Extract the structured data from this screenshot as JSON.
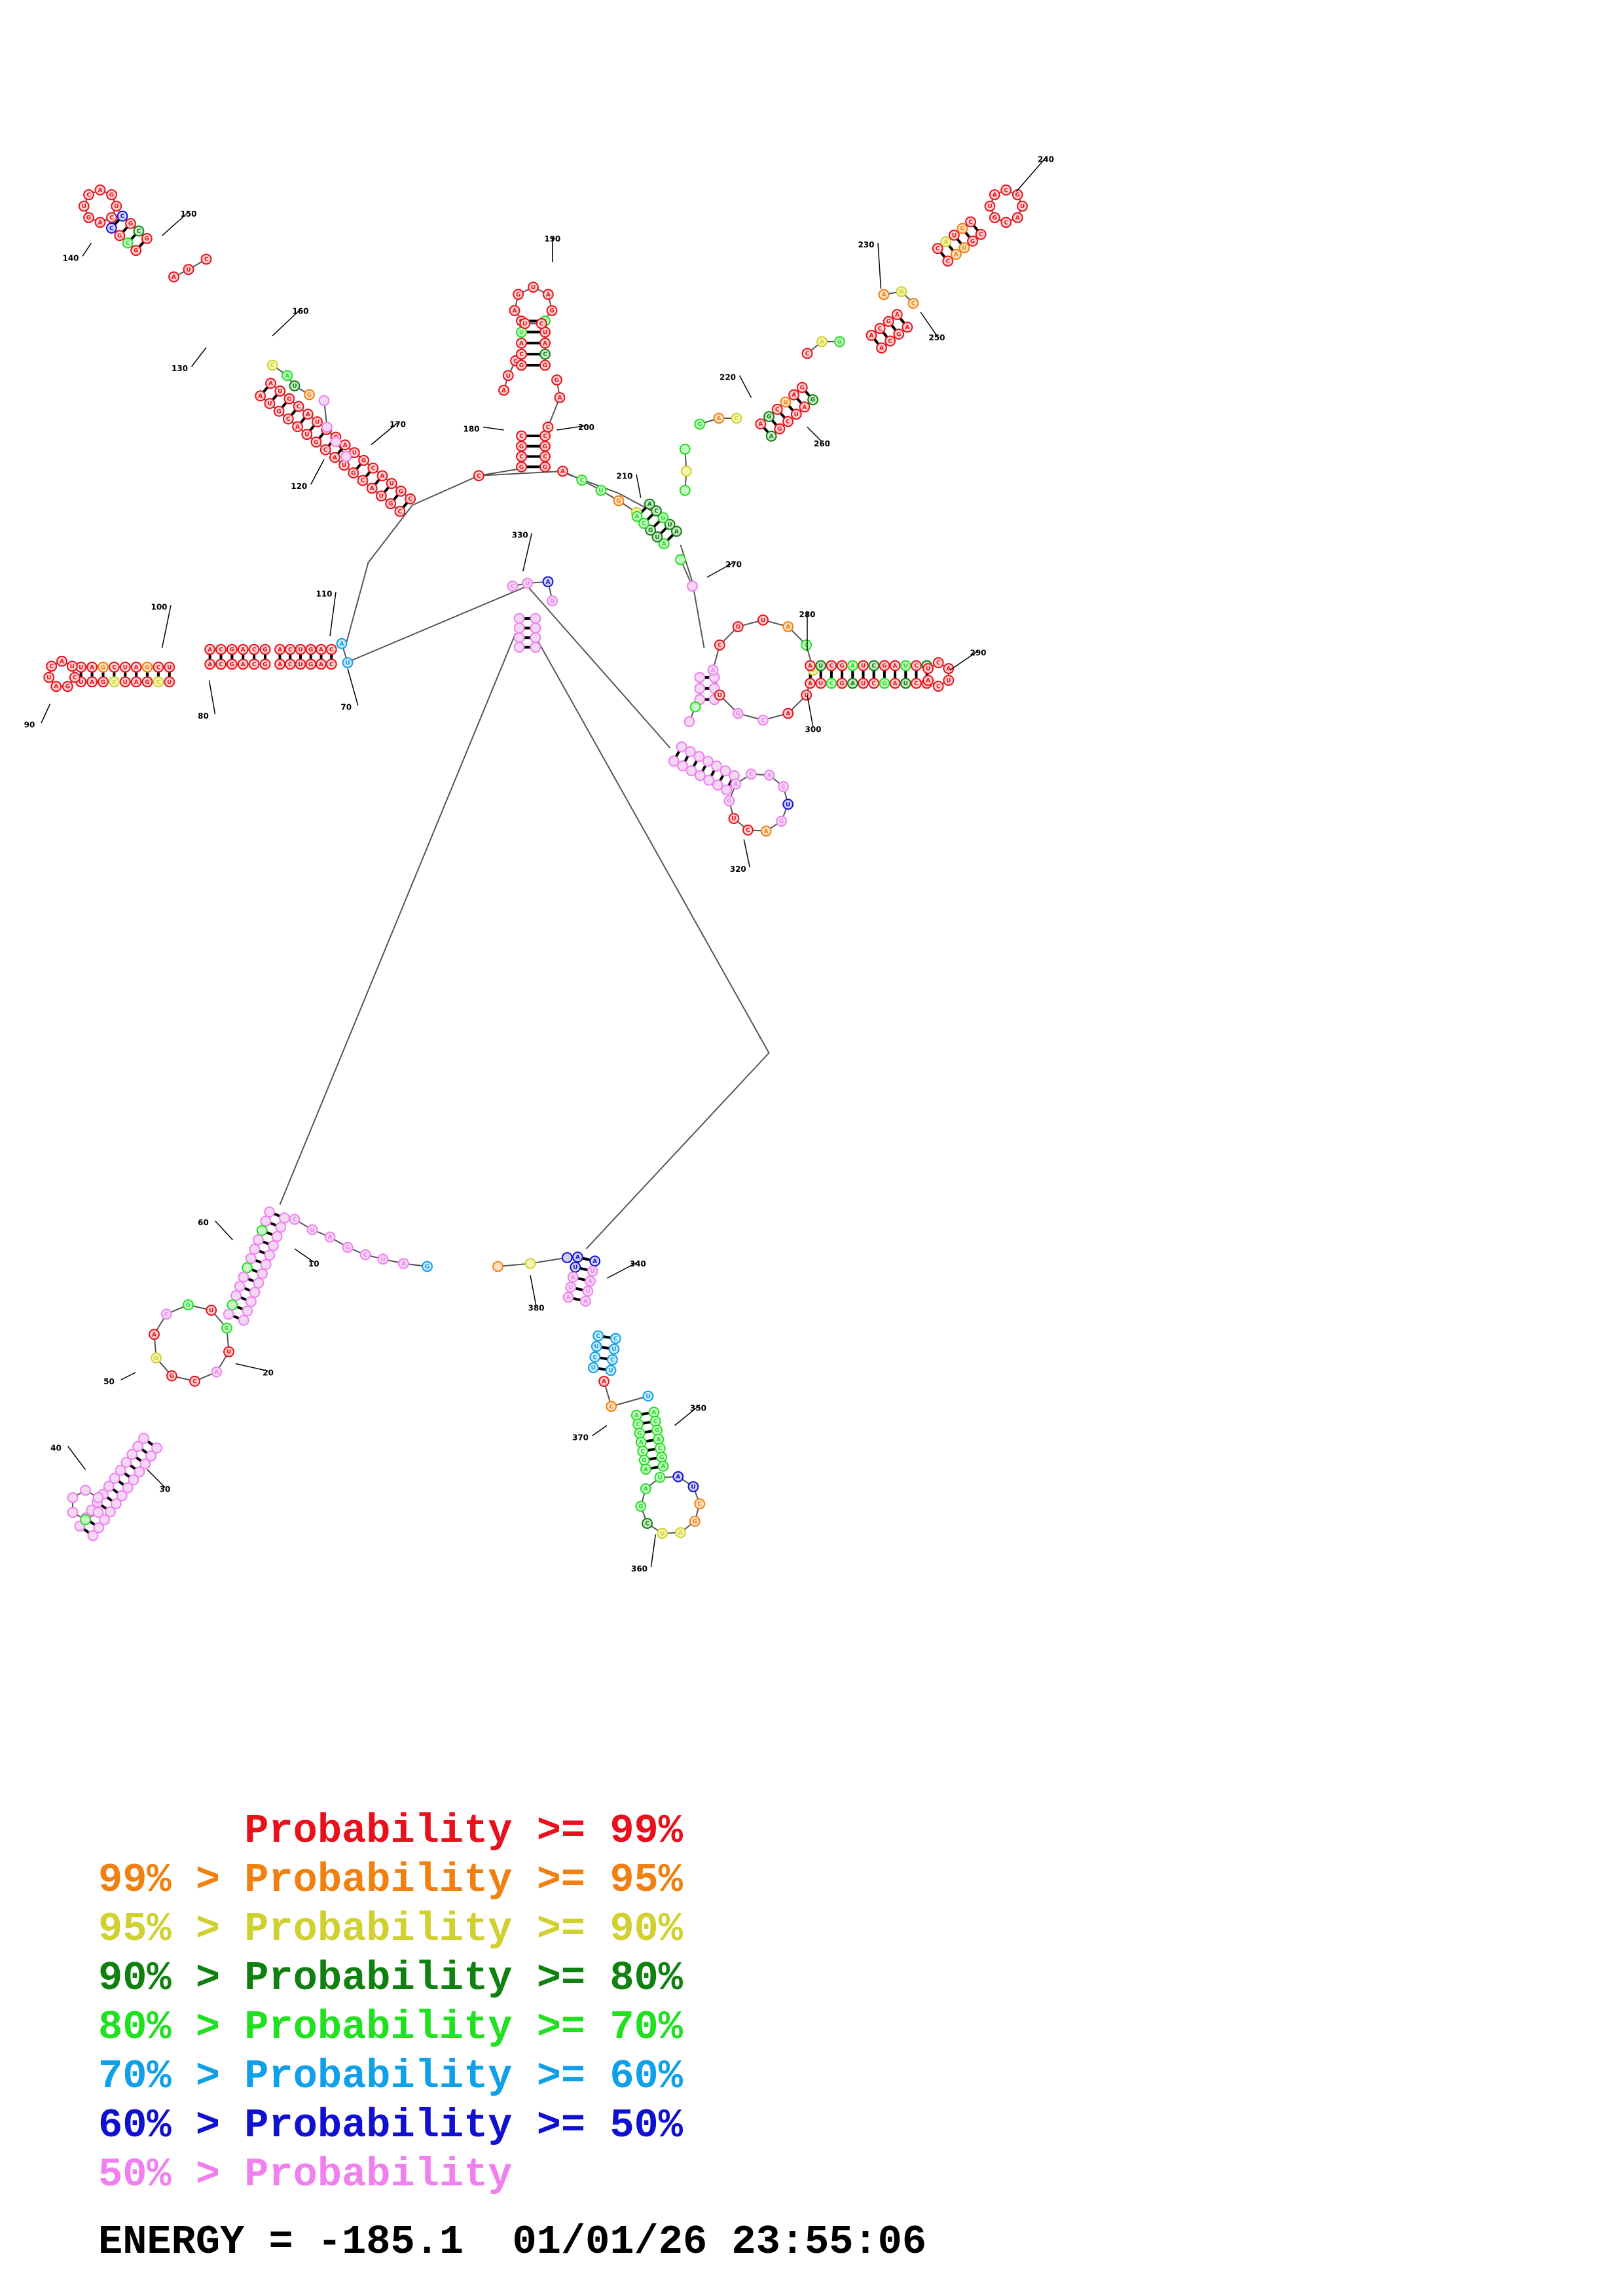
{
  "legend": {
    "rows": [
      {
        "prefix": "",
        "label": "Probability >= 99%",
        "color": "#e8101a"
      },
      {
        "prefix": "99% > ",
        "label": "Probability >= 95%",
        "color": "#f08010"
      },
      {
        "prefix": "95% > ",
        "label": "Probability >= 90%",
        "color": "#d0d030"
      },
      {
        "prefix": "90% > ",
        "label": "Probability >= 80%",
        "color": "#108010"
      },
      {
        "prefix": "80% > ",
        "label": "Probability >= 70%",
        "color": "#20e020"
      },
      {
        "prefix": "70% > ",
        "label": "Probability >= 60%",
        "color": "#10a0e8"
      },
      {
        "prefix": "60% > ",
        "label": "Probability >= 50%",
        "color": "#1010d0"
      },
      {
        "prefix": "50% > ",
        "label": "Probability",
        "color": "#f080f0"
      }
    ]
  },
  "footer": {
    "energy_label": "ENERGY = ",
    "energy_value": "-185.1",
    "timestamp": "01/01/26 23:55:06"
  },
  "structure_labels": [
    "10",
    "20",
    "30",
    "40",
    "50",
    "60",
    "70",
    "80",
    "90",
    "100",
    "110",
    "120",
    "130",
    "140",
    "150",
    "160",
    "170",
    "180",
    "190",
    "200",
    "210",
    "220",
    "230",
    "240",
    "250",
    "260",
    "270",
    "280",
    "290",
    "300",
    "320",
    "330",
    "340",
    "350",
    "360",
    "370",
    "380"
  ]
}
